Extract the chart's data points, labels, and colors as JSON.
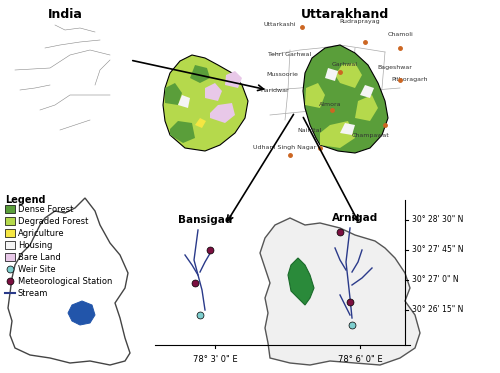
{
  "title": "",
  "background_color": "#ffffff",
  "legend_items": [
    {
      "label": "Dense Forest",
      "color": "#5a9e3a",
      "type": "patch"
    },
    {
      "label": "Degraded Forest",
      "color": "#b5d94c",
      "type": "patch"
    },
    {
      "label": "Agriculture",
      "color": "#f5e642",
      "type": "patch"
    },
    {
      "label": "Housing",
      "color": "#f5f5f5",
      "type": "patch"
    },
    {
      "label": "Bare Land",
      "color": "#e8c8e8",
      "type": "patch"
    },
    {
      "label": "Weir Site",
      "color": "#7ecece",
      "type": "circle"
    },
    {
      "label": "Meteorological Station",
      "color": "#7b1040",
      "type": "circle"
    },
    {
      "label": "Stream",
      "color": "#2a3a8a",
      "type": "line"
    }
  ],
  "india_label": "India",
  "uttarakhand_label": "Uttarakhand",
  "mussoorie_label": "Mussoorie",
  "bansigad_label": "Bansigad",
  "arnigad_label": "Arnigad",
  "x_ticks": [
    "78° 3' 0\" E",
    "78° 6' 0\" E"
  ],
  "y_ticks": [
    "30° 26' 15\" N",
    "30° 27' 0\" N",
    "30° 27' 45\" N",
    "30° 28' 30\" N"
  ],
  "legend_title": "Legend"
}
